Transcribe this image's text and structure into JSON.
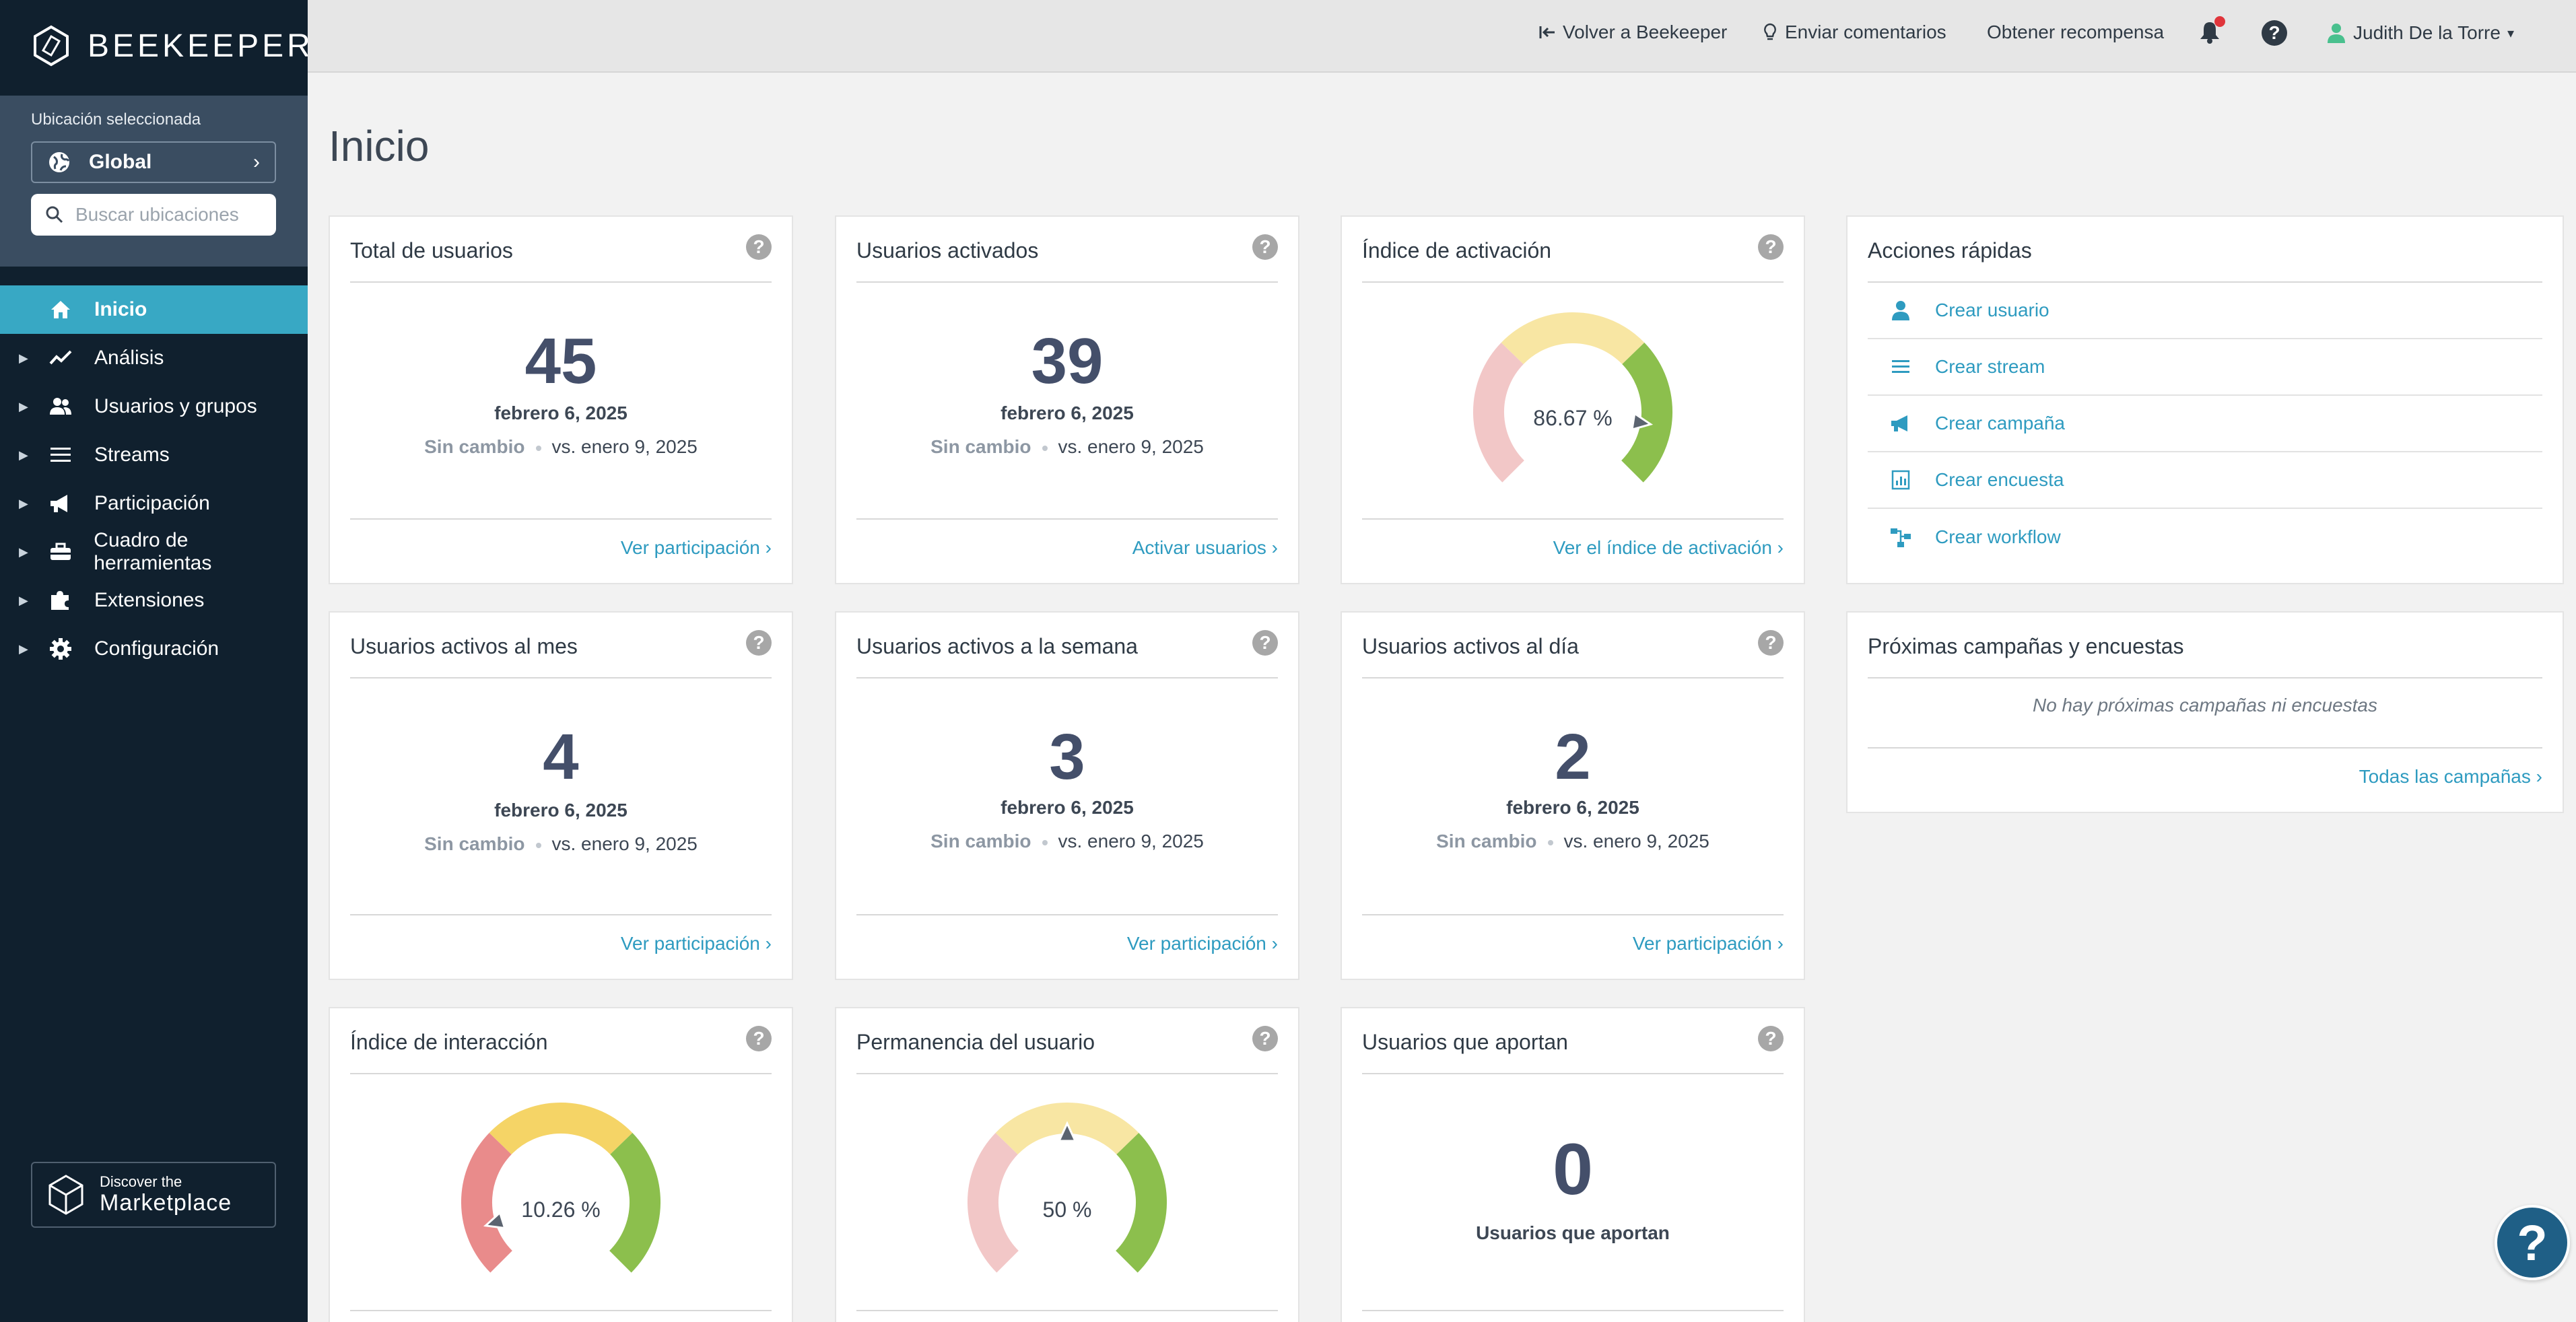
{
  "app": {
    "brand": "BEEKEEPER"
  },
  "location": {
    "label": "Ubicación seleccionada",
    "selected": "Global",
    "search_placeholder": "Buscar ubicaciones"
  },
  "sidebar": {
    "items": [
      {
        "label": "Inicio",
        "icon": "home-icon"
      },
      {
        "label": "Análisis",
        "icon": "trend-icon"
      },
      {
        "label": "Usuarios y grupos",
        "icon": "users-icon"
      },
      {
        "label": "Streams",
        "icon": "list-icon"
      },
      {
        "label": "Participación",
        "icon": "megaphone-icon"
      },
      {
        "label": "Cuadro de herramientas",
        "icon": "toolbox-icon"
      },
      {
        "label": "Extensiones",
        "icon": "puzzle-icon"
      },
      {
        "label": "Configuración",
        "icon": "gear-icon"
      }
    ],
    "marketplace": {
      "small": "Discover the",
      "big": "Marketplace"
    }
  },
  "topbar": {
    "back": "Volver a Beekeeper",
    "feedback": "Enviar comentarios",
    "reward": "Obtener recompensa",
    "user": "Judith De la Torre"
  },
  "page": {
    "title": "Inicio"
  },
  "cards": {
    "total_users": {
      "title": "Total de usuarios",
      "value": "45",
      "date": "febrero 6, 2025",
      "change": "Sin cambio",
      "compare": "vs. enero 9, 2025",
      "link": "Ver participación"
    },
    "activated": {
      "title": "Usuarios activados",
      "value": "39",
      "date": "febrero 6, 2025",
      "change": "Sin cambio",
      "compare": "vs. enero 9, 2025",
      "link": "Activar usuarios"
    },
    "activation_index": {
      "title": "Índice de activación",
      "percent": "86.67 %",
      "value": 86.67,
      "link": "Ver el índice de activación"
    },
    "monthly": {
      "title": "Usuarios activos al mes",
      "value": "4",
      "date": "febrero 6, 2025",
      "change": "Sin cambio",
      "compare": "vs. enero 9, 2025",
      "link": "Ver participación"
    },
    "weekly": {
      "title": "Usuarios activos a la semana",
      "value": "3",
      "date": "febrero 6, 2025",
      "change": "Sin cambio",
      "compare": "vs. enero 9, 2025",
      "link": "Ver participación"
    },
    "daily": {
      "title": "Usuarios activos al día",
      "value": "2",
      "date": "febrero 6, 2025",
      "change": "Sin cambio",
      "compare": "vs. enero 9, 2025",
      "link": "Ver participación"
    },
    "interaction": {
      "title": "Índice de interacción",
      "percent": "10.26 %",
      "value": 10.26
    },
    "retention": {
      "title": "Permanencia del usuario",
      "percent": "50 %",
      "value": 50
    },
    "contributors": {
      "title": "Usuarios que aportan",
      "value": "0",
      "caption": "Usuarios que aportan"
    }
  },
  "quick_actions": {
    "title": "Acciones rápidas",
    "items": [
      {
        "label": "Crear usuario",
        "icon": "user-icon"
      },
      {
        "label": "Crear stream",
        "icon": "list-icon"
      },
      {
        "label": "Crear campaña",
        "icon": "megaphone-icon"
      },
      {
        "label": "Crear encuesta",
        "icon": "poll-icon"
      },
      {
        "label": "Crear workflow",
        "icon": "workflow-icon"
      }
    ]
  },
  "campaigns": {
    "title": "Próximas campañas y encuestas",
    "empty": "No hay próximas campañas ni encuestas",
    "link": "Todas las campañas"
  },
  "colors": {
    "sidebar_bg": "#10202e",
    "accent": "#38a8c4",
    "link": "#2e9bc0",
    "gauge_red": "#e98b8b",
    "gauge_red_light": "#f2c7c7",
    "gauge_yellow": "#f5d466",
    "gauge_yellow_light": "#f8e6a3",
    "gauge_green": "#8cbf4d"
  }
}
